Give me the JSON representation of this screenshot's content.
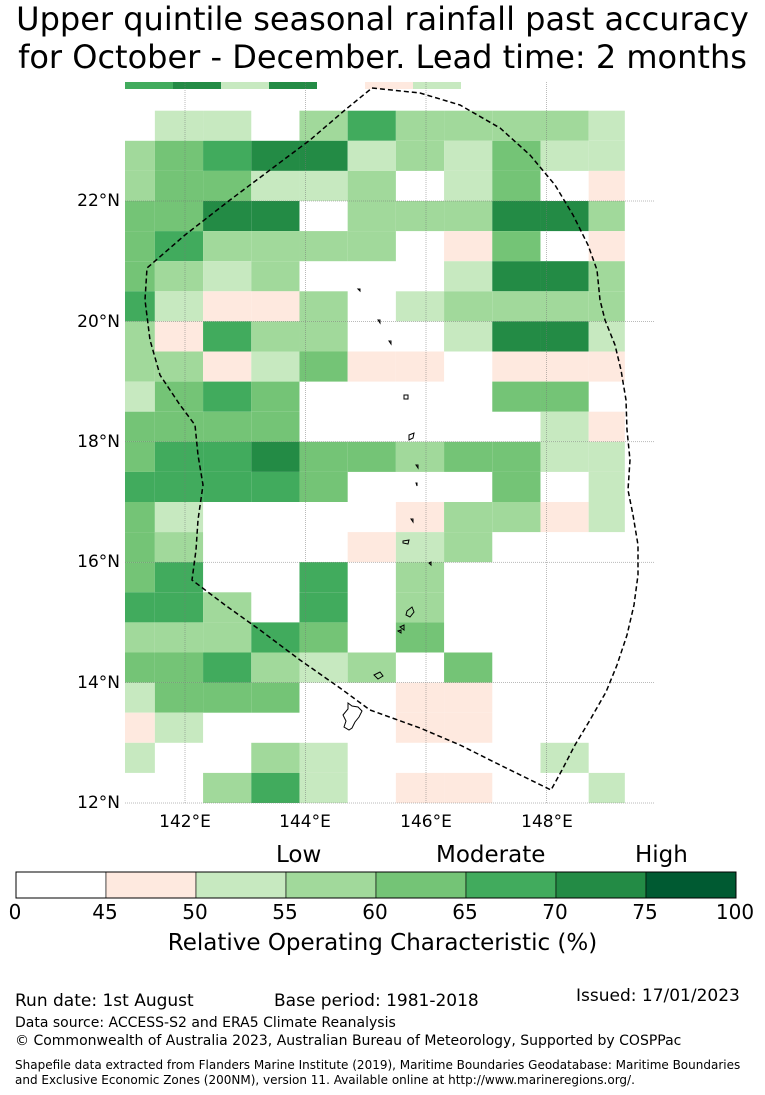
{
  "title": {
    "line1": "Upper quintile seasonal rainfall past accuracy",
    "line2": "for October - December. Lead time: 2 months"
  },
  "map": {
    "lon_range": [
      141.0,
      149.8
    ],
    "lat_range": [
      12.0,
      24.0
    ],
    "y_ticks": [
      "12°N",
      "14°N",
      "16°N",
      "18°N",
      "20°N",
      "22°N"
    ],
    "x_ticks": [
      "142°E",
      "144°E",
      "146°E",
      "148°E"
    ],
    "colors": [
      "#ffffff",
      "#fee9df",
      "#c7e9c0",
      "#a1d99b",
      "#74c476",
      "#41ab5d",
      "#238b45",
      "#005a32"
    ],
    "grid_rows": [
      "02203533332",
      "34566232422",
      "34422302401",
      "44660333663",
      "45333301401",
      "43230002663",
      "52113023333",
      "31533002662",
      "33124110111",
      "24540000440",
      "44440000021",
      "45564434422",
      "55554000402",
      "42000013312",
      "43000123000",
      "45005030000",
      "55305030000",
      "33354040000",
      "44532304000",
      "24440011000",
      "12000011000",
      "20032000020",
      "00352011002"
    ],
    "grid_top_lat": 23.5,
    "cell_lat": 0.5
  },
  "colorbar": {
    "ticks": [
      "0",
      "45",
      "50",
      "55",
      "60",
      "65",
      "70",
      "75",
      "100"
    ],
    "categories": {
      "low": "Low",
      "moderate": "Moderate",
      "high": "High"
    },
    "title": "Relative Operating Characteristic (%)"
  },
  "footer": {
    "run_date": "Run date: 1st August",
    "base_period": "Base period: 1981-2018",
    "issued": "Issued: 17/01/2023",
    "data_source": "Data source: ACCESS-S2 and ERA5 Climate Reanalysis",
    "copyright": "© Commonwealth of Australia 2023, Australian Bureau of Meteorology, Supported by COSPPac",
    "shapefile_line1": "Shapefile data extracted from Flanders Marine Institute (2019), Maritime Boundaries Geodatabase: Maritime Boundaries",
    "shapefile_line2": "and Exclusive Economic Zones (200NM), version 11. Available online at http://www.marineregions.org/."
  }
}
